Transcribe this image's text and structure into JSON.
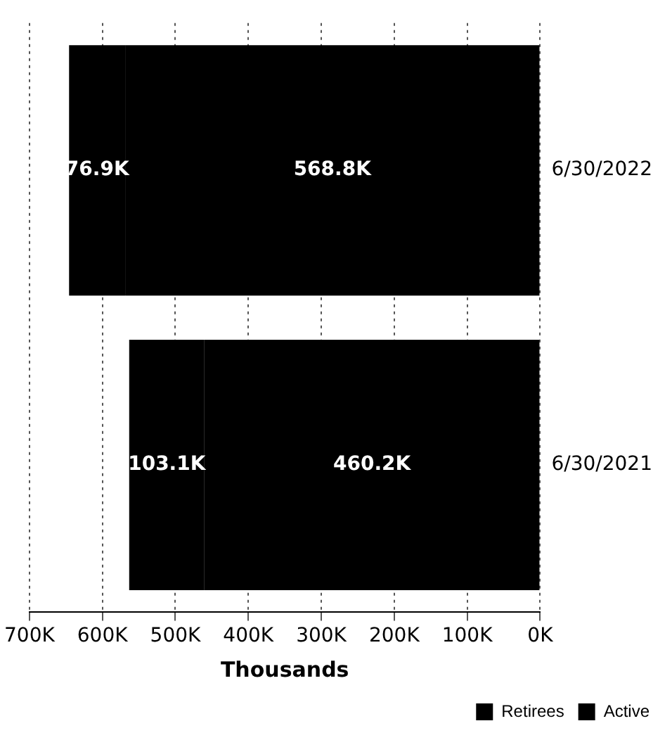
{
  "chart_data": {
    "type": "bar",
    "orientation": "horizontal",
    "xlabel": "Thousands",
    "categories": [
      "6/30/2022",
      "6/30/2021"
    ],
    "stacked": true,
    "series": [
      {
        "name": "Active",
        "color": "#000000",
        "values": [
          568.8,
          460.2
        ],
        "value_labels": [
          "568.8K",
          "460.2K"
        ]
      },
      {
        "name": "Retirees",
        "color": "#000000",
        "values": [
          76.9,
          103.1
        ],
        "value_labels": [
          "76.9K",
          "103.1K"
        ]
      }
    ],
    "xlim": [
      700,
      0
    ],
    "xticks": [
      {
        "value": 700,
        "label": "700K"
      },
      {
        "value": 600,
        "label": "600K"
      },
      {
        "value": 500,
        "label": "500K"
      },
      {
        "value": 400,
        "label": "400K"
      },
      {
        "value": 300,
        "label": "300K"
      },
      {
        "value": 200,
        "label": "200K"
      },
      {
        "value": 100,
        "label": "100K"
      },
      {
        "value": 0,
        "label": "0K"
      }
    ],
    "grid": "x",
    "legend": "bottom right"
  }
}
